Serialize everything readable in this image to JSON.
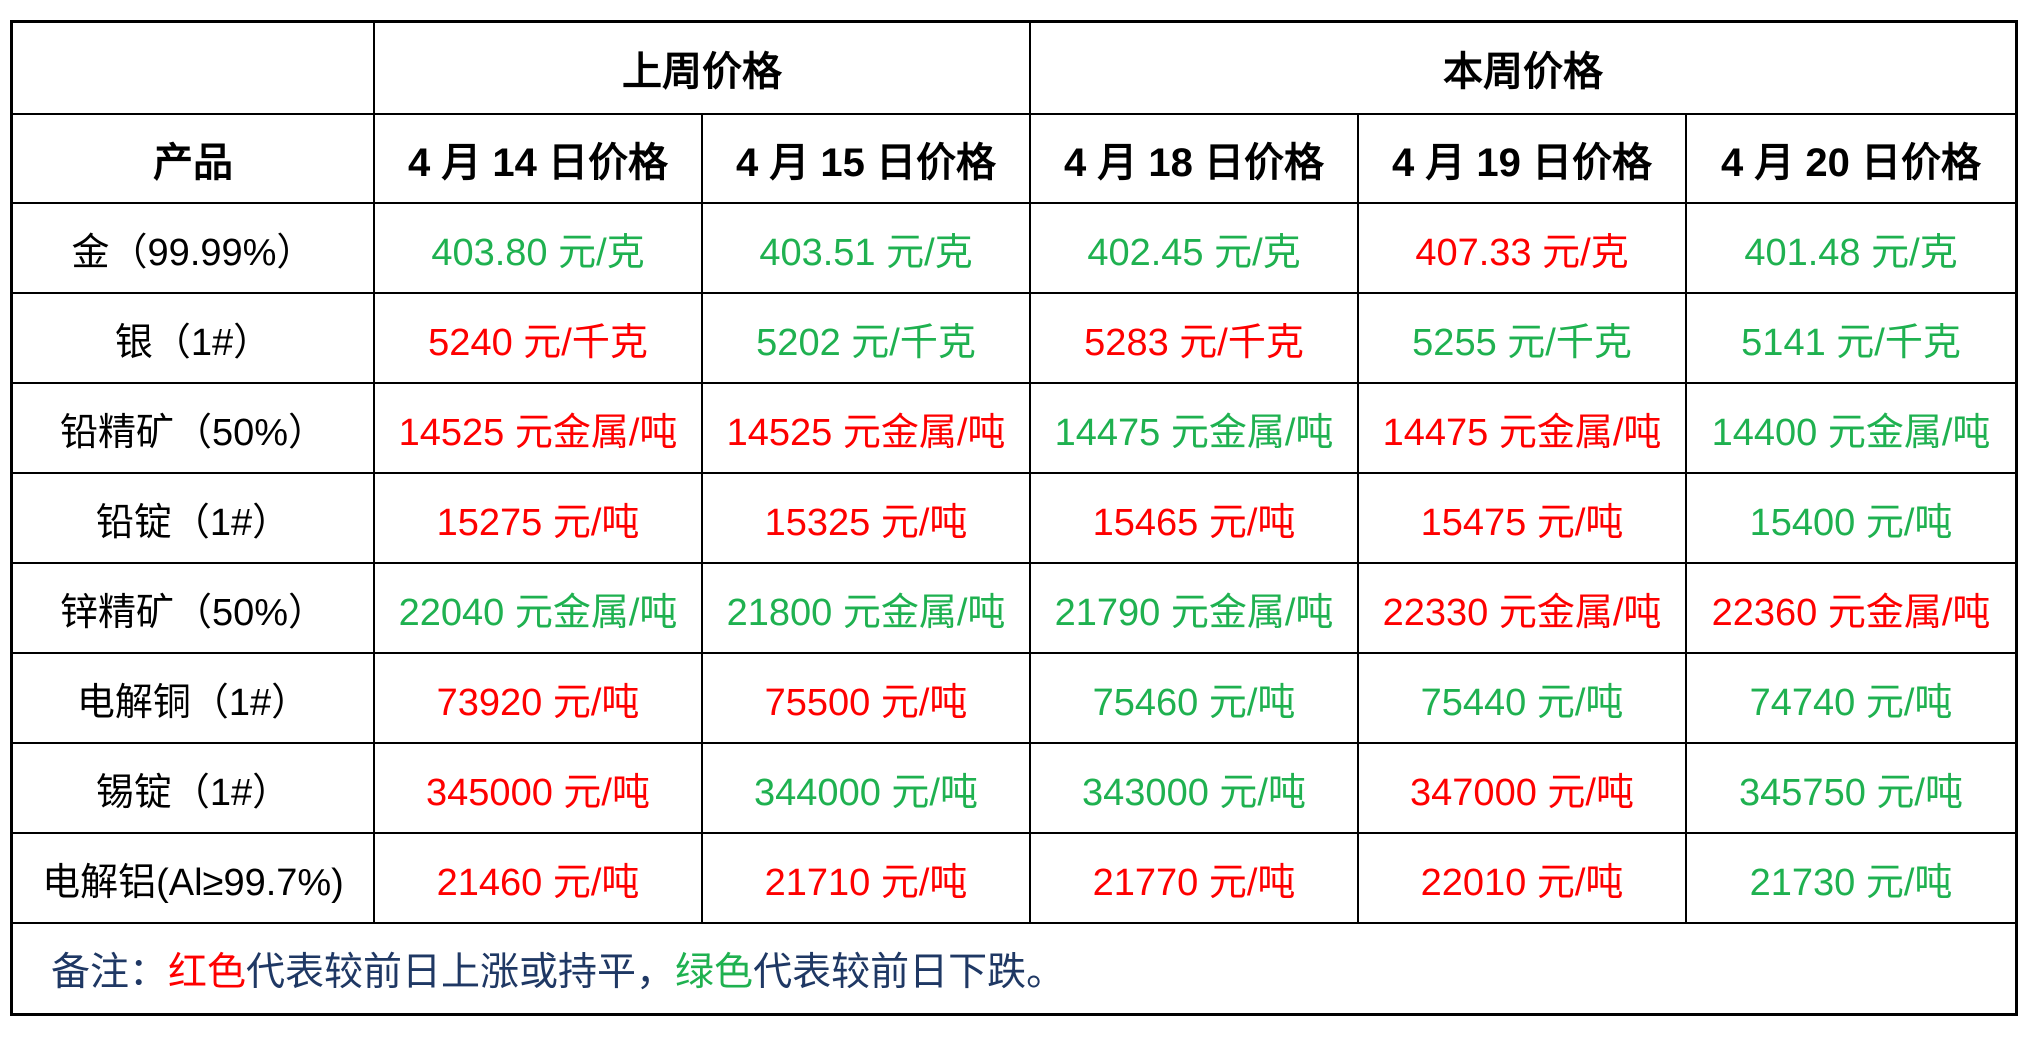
{
  "table": {
    "title_row": {
      "corner": "",
      "last_week_label": "上周价格",
      "this_week_label": "本周价格"
    },
    "header": {
      "product_label": "产品",
      "date_columns": [
        "4 月 14 日价格",
        "4 月 15 日价格",
        "4 月 18 日价格",
        "4 月 19 日价格",
        "4 月 20 日价格"
      ]
    },
    "rows": [
      {
        "product": "金（99.99%）",
        "prices": [
          {
            "text": "403.80 元/克",
            "color": "green"
          },
          {
            "text": "403.51 元/克",
            "color": "green"
          },
          {
            "text": "402.45 元/克",
            "color": "green"
          },
          {
            "text": "407.33 元/克",
            "color": "red"
          },
          {
            "text": "401.48 元/克",
            "color": "green"
          }
        ]
      },
      {
        "product": "银（1#）",
        "prices": [
          {
            "text": "5240 元/千克",
            "color": "red"
          },
          {
            "text": "5202 元/千克",
            "color": "green"
          },
          {
            "text": "5283 元/千克",
            "color": "red"
          },
          {
            "text": "5255 元/千克",
            "color": "green"
          },
          {
            "text": "5141 元/千克",
            "color": "green"
          }
        ]
      },
      {
        "product": "铅精矿（50%）",
        "prices": [
          {
            "text": "14525 元金属/吨",
            "color": "red"
          },
          {
            "text": "14525 元金属/吨",
            "color": "red"
          },
          {
            "text": "14475 元金属/吨",
            "color": "green"
          },
          {
            "text": "14475 元金属/吨",
            "color": "red"
          },
          {
            "text": "14400 元金属/吨",
            "color": "green"
          }
        ]
      },
      {
        "product": "铅锭（1#）",
        "prices": [
          {
            "text": "15275 元/吨",
            "color": "red"
          },
          {
            "text": "15325 元/吨",
            "color": "red"
          },
          {
            "text": "15465 元/吨",
            "color": "red"
          },
          {
            "text": "15475 元/吨",
            "color": "red"
          },
          {
            "text": "15400 元/吨",
            "color": "green"
          }
        ]
      },
      {
        "product": "锌精矿（50%）",
        "prices": [
          {
            "text": "22040 元金属/吨",
            "color": "green"
          },
          {
            "text": "21800 元金属/吨",
            "color": "green"
          },
          {
            "text": "21790 元金属/吨",
            "color": "green"
          },
          {
            "text": "22330 元金属/吨",
            "color": "red"
          },
          {
            "text": "22360 元金属/吨",
            "color": "red"
          }
        ]
      },
      {
        "product": "电解铜（1#）",
        "prices": [
          {
            "text": "73920 元/吨",
            "color": "red"
          },
          {
            "text": "75500 元/吨",
            "color": "red"
          },
          {
            "text": "75460 元/吨",
            "color": "green"
          },
          {
            "text": "75440 元/吨",
            "color": "green"
          },
          {
            "text": "74740 元/吨",
            "color": "green"
          }
        ]
      },
      {
        "product": "锡锭（1#）",
        "prices": [
          {
            "text": "345000 元/吨",
            "color": "red"
          },
          {
            "text": "344000 元/吨",
            "color": "green"
          },
          {
            "text": "343000 元/吨",
            "color": "green"
          },
          {
            "text": "347000 元/吨",
            "color": "red"
          },
          {
            "text": "345750 元/吨",
            "color": "green"
          }
        ]
      },
      {
        "product": "电解铝(Al≥99.7%)",
        "prices": [
          {
            "text": "21460 元/吨",
            "color": "red"
          },
          {
            "text": "21710 元/吨",
            "color": "red"
          },
          {
            "text": "21770 元/吨",
            "color": "red"
          },
          {
            "text": "22010 元/吨",
            "color": "red"
          },
          {
            "text": "21730 元/吨",
            "color": "green"
          }
        ]
      }
    ],
    "note": {
      "prefix": "备注：",
      "red_word": "红色",
      "red_desc": "代表较前日上涨或持平，",
      "green_word": "绿色",
      "green_desc": "代表较前日下跌。"
    },
    "colors": {
      "up_red": "#fe0000",
      "down_green": "#1fb150",
      "note_text": "#1f3864",
      "border": "#000000"
    }
  }
}
